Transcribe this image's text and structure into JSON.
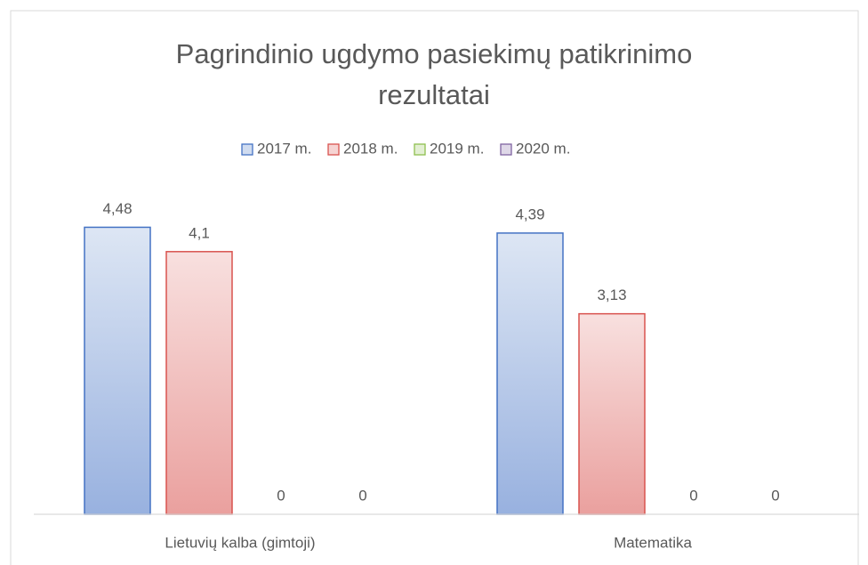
{
  "chart_data": {
    "type": "bar",
    "title": "Pagrindinio ugdymo pasiekimų patikrinimo rezultatai",
    "categories": [
      "Lietuvių kalba (gimtoji)",
      "Matematika"
    ],
    "series": [
      {
        "name": "2017 m.",
        "color": "#4472c4",
        "values": [
          4.48,
          4.39
        ],
        "value_labels": [
          "4,48",
          "4,39"
        ]
      },
      {
        "name": "2018 m.",
        "color": "#d9534f",
        "values": [
          4.1,
          3.13
        ],
        "value_labels": [
          "4,1",
          "3,13"
        ]
      },
      {
        "name": "2019 m.",
        "color": "#8fbf4f",
        "values": [
          0,
          0
        ],
        "value_labels": [
          "0",
          "0"
        ]
      },
      {
        "name": "2020 m.",
        "color": "#8064a2",
        "values": [
          0,
          0
        ],
        "value_labels": [
          "0",
          "0"
        ]
      }
    ],
    "ylim": [
      0,
      5
    ],
    "legend": "top"
  }
}
